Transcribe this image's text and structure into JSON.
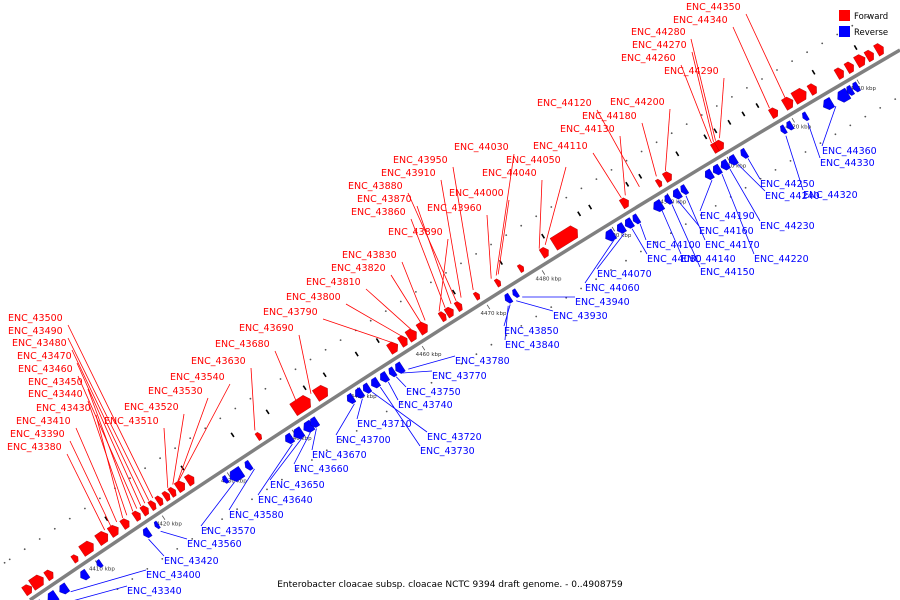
{
  "caption": "Enterobacter cloacae subsp. cloacae NCTC 9394 draft genome. - 0..4908759",
  "legend": [
    {
      "label": "Forward",
      "color": "#ff0000"
    },
    {
      "label": "Reverse",
      "color": "#0000ff"
    }
  ],
  "colors": {
    "forward": "#ff0000",
    "reverse": "#0000ff",
    "backbone": "#808080"
  },
  "kbp_ticks": [
    "4410 kbp",
    "4420 kbp",
    "4430 kbp",
    "4440 kbp",
    "4450 kbp",
    "4460 kbp",
    "4470 kbp",
    "4480 kbp",
    "4490 kbp",
    "4500 kbp",
    "4510 kbp",
    "4520 kbp",
    "4530 kbp"
  ],
  "forward_labels": [
    "ENC_43380",
    "ENC_43390",
    "ENC_43410",
    "ENC_43430",
    "ENC_43440",
    "ENC_43450",
    "ENC_43460",
    "ENC_43470",
    "ENC_43480",
    "ENC_43490",
    "ENC_43500",
    "ENC_43510",
    "ENC_43520",
    "ENC_43530",
    "ENC_43540",
    "ENC_43630",
    "ENC_43680",
    "ENC_43690",
    "ENC_43790",
    "ENC_43800",
    "ENC_43810",
    "ENC_43820",
    "ENC_43830",
    "ENC_43890",
    "ENC_43860",
    "ENC_43870",
    "ENC_43880",
    "ENC_43910",
    "ENC_43950",
    "ENC_43960",
    "ENC_44000",
    "ENC_44030",
    "ENC_44040",
    "ENC_44050",
    "ENC_44110",
    "ENC_44130",
    "ENC_44180",
    "ENC_44120",
    "ENC_44200",
    "ENC_44260",
    "ENC_44270",
    "ENC_44280",
    "ENC_44290",
    "ENC_44340",
    "ENC_44350"
  ],
  "reverse_labels": [
    "ENC_43340",
    "ENC_43400",
    "ENC_43420",
    "ENC_43560",
    "ENC_43570",
    "ENC_43580",
    "ENC_43640",
    "ENC_43650",
    "ENC_43660",
    "ENC_43670",
    "ENC_43700",
    "ENC_43710",
    "ENC_43720",
    "ENC_43730",
    "ENC_43740",
    "ENC_43750",
    "ENC_43770",
    "ENC_43780",
    "ENC_43840",
    "ENC_43850",
    "ENC_43930",
    "ENC_43940",
    "ENC_44060",
    "ENC_44070",
    "ENC_44080",
    "ENC_44100",
    "ENC_44140",
    "ENC_44150",
    "ENC_44160",
    "ENC_44170",
    "ENC_44190",
    "ENC_44220",
    "ENC_44230",
    "ENC_44240",
    "ENC_44250",
    "ENC_44320",
    "ENC_44330",
    "ENC_44360"
  ]
}
